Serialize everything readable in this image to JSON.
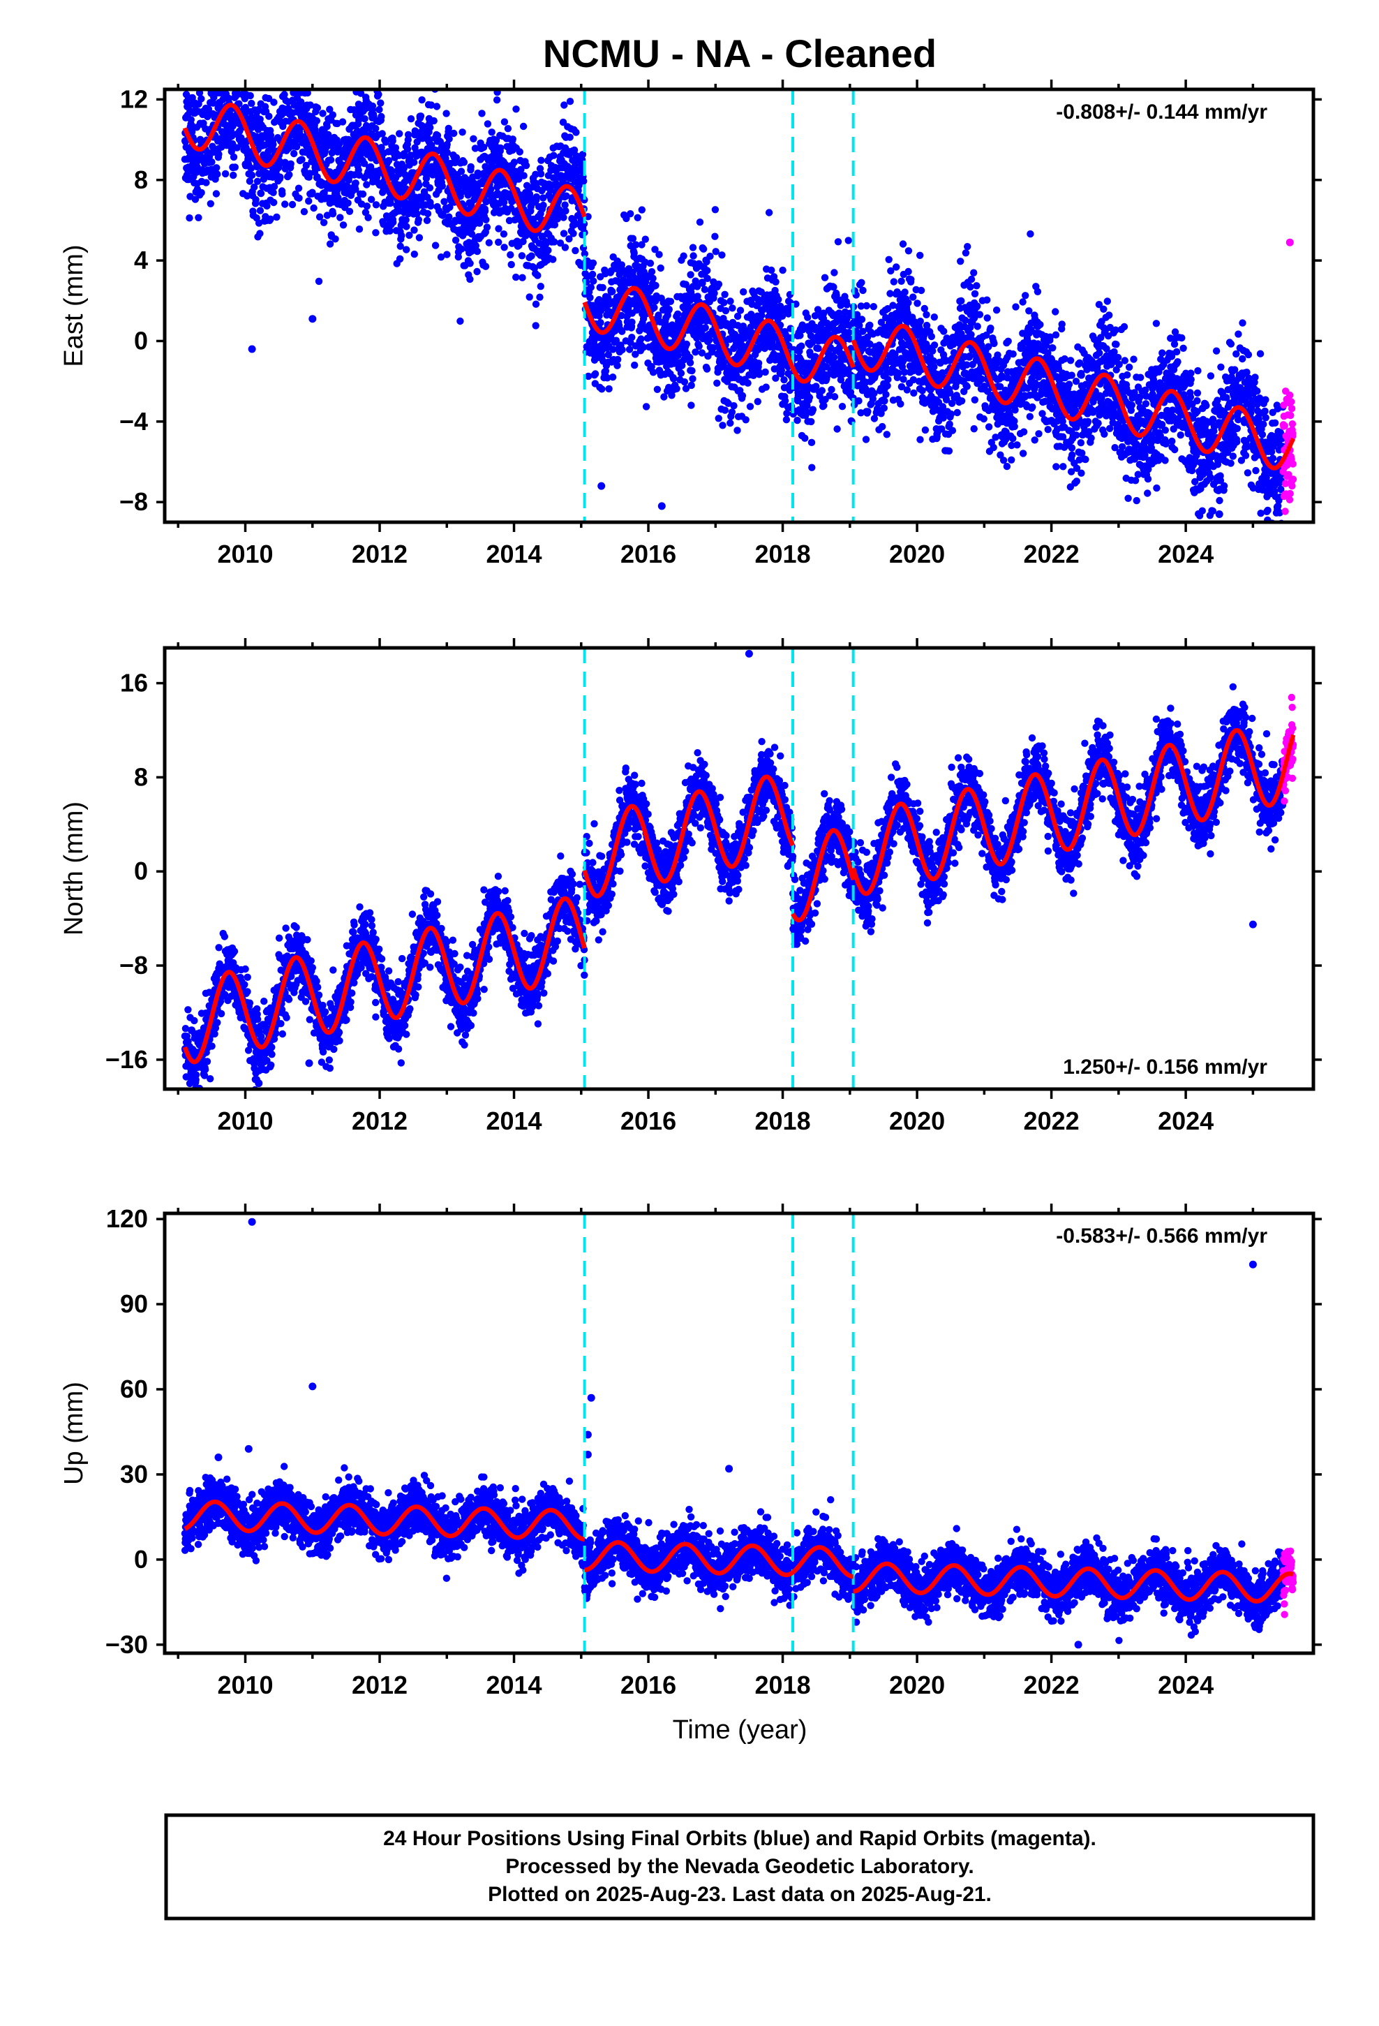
{
  "title": "NCMU  - NA - Cleaned",
  "xlabel": "Time (year)",
  "footer": [
    "24 Hour Positions Using Final Orbits (blue) and Rapid Orbits (magenta).",
    "Processed by the Nevada Geodetic Laboratory.",
    "Plotted on 2025-Aug-23. Last data on 2025-Aug-21."
  ],
  "colors": {
    "final_orbits": "#0000ff",
    "rapid_orbits": "#ff00ff",
    "model_fit": "#ff0000",
    "breaks": "#00e5ee"
  },
  "chart_data": [
    {
      "type": "scatter",
      "name": "east",
      "ylabel": "East (mm)",
      "rate_label": "-0.808+/- 0.144 mm/yr",
      "rate_position": "top-right",
      "xlim": [
        2008.8,
        2025.9
      ],
      "ylim": [
        -9,
        12.5
      ],
      "yticks": [
        -8,
        -4,
        0,
        4,
        8,
        12
      ],
      "xticks": [
        2010,
        2012,
        2014,
        2016,
        2018,
        2020,
        2022,
        2024
      ],
      "grid": false,
      "breaks": [
        2015.05,
        2018.15,
        2019.05
      ],
      "segments": [
        [
          2009.1,
          2015.05
        ],
        [
          2015.05,
          2019.05
        ],
        [
          2019.05,
          2025.6
        ]
      ],
      "model": {
        "epoch": 2017.0,
        "rate": -0.808,
        "amp": 1.3,
        "phase": 0.55,
        "offsets": [
          4.6,
          0.35,
          1.7
        ],
        "noise": 1.5,
        "final_end": 2025.45
      },
      "outliers": [
        [
          2010.1,
          -0.4
        ],
        [
          2011.0,
          1.1
        ],
        [
          2025.55,
          4.9
        ],
        [
          2015.3,
          -7.2
        ],
        [
          2016.2,
          -8.2
        ],
        [
          2024.5,
          -8.6
        ]
      ]
    },
    {
      "type": "scatter",
      "name": "north",
      "ylabel": "North (mm)",
      "rate_label": "1.250+/- 0.156 mm/yr",
      "rate_position": "bottom-right",
      "xlim": [
        2008.8,
        2025.9
      ],
      "ylim": [
        -18.5,
        19
      ],
      "yticks": [
        -16,
        -8,
        0,
        8,
        16
      ],
      "xticks": [
        2010,
        2012,
        2014,
        2016,
        2018,
        2020,
        2022,
        2024
      ],
      "grid": false,
      "breaks": [
        2015.05,
        2018.15,
        2019.05
      ],
      "segments": [
        [
          2009.1,
          2015.05
        ],
        [
          2015.05,
          2018.15
        ],
        [
          2018.15,
          2019.05
        ],
        [
          2019.05,
          2025.6
        ]
      ],
      "model": {
        "epoch": 2017.0,
        "rate": 1.25,
        "amp": 3.5,
        "phase": 0.5,
        "offsets": [
          -3.0,
          3.6,
          -2.2,
          -1.2
        ],
        "noise": 1.4,
        "final_end": 2025.45
      },
      "outliers": [
        [
          2009.2,
          -13.5
        ],
        [
          2010.2,
          -18.0
        ],
        [
          2010.95,
          -16.3
        ],
        [
          2025.0,
          -4.5
        ],
        [
          2017.5,
          18.5
        ]
      ]
    },
    {
      "type": "scatter",
      "name": "up",
      "ylabel": "Up (mm)",
      "rate_label": "-0.583+/- 0.566 mm/yr",
      "rate_position": "top-right",
      "xlim": [
        2008.8,
        2025.9
      ],
      "ylim": [
        -33,
        122
      ],
      "yticks": [
        -30,
        0,
        30,
        60,
        90,
        120
      ],
      "xticks": [
        2010,
        2012,
        2014,
        2016,
        2018,
        2020,
        2022,
        2024
      ],
      "grid": false,
      "breaks": [
        2015.05,
        2018.15,
        2019.05
      ],
      "segments": [
        [
          2009.1,
          2015.05
        ],
        [
          2015.05,
          2019.05
        ],
        [
          2019.05,
          2025.6
        ]
      ],
      "model": {
        "epoch": 2017.0,
        "rate": -0.583,
        "amp": 5.0,
        "phase": 0.3,
        "offsets": [
          11.0,
          0.2,
          -5.0
        ],
        "noise": 4.5,
        "final_end": 2025.45
      },
      "outliers": [
        [
          2010.1,
          119
        ],
        [
          2025.0,
          104
        ],
        [
          2011.0,
          61
        ],
        [
          2015.15,
          57
        ],
        [
          2015.1,
          44
        ],
        [
          2015.1,
          37
        ],
        [
          2010.05,
          39
        ],
        [
          2009.6,
          36
        ],
        [
          2017.2,
          32
        ],
        [
          2022.4,
          -30
        ]
      ]
    }
  ]
}
